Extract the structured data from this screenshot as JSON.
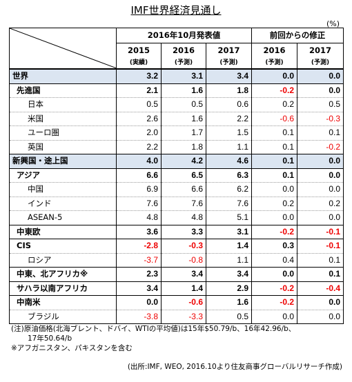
{
  "title": "IMF世界経済見通し",
  "unit": "(%)",
  "header": {
    "group1": "2016年10月発表値",
    "group2": "前回からの修正",
    "years": [
      "2015",
      "2016",
      "2017",
      "2016",
      "2017"
    ],
    "subs": [
      "(実績)",
      "(予測)",
      "(予測)",
      "(予測)",
      "(予測)"
    ]
  },
  "rows": [
    {
      "label": "世界",
      "level": 0,
      "values": [
        "3.2",
        "3.1",
        "3.4",
        "0.0",
        "0.0"
      ],
      "red": [
        false,
        false,
        false,
        false,
        false
      ]
    },
    {
      "label": "先進国",
      "level": 1,
      "values": [
        "2.1",
        "1.6",
        "1.8",
        "-0.2",
        "0.0"
      ],
      "red": [
        false,
        false,
        false,
        true,
        false
      ]
    },
    {
      "label": "日本",
      "level": 2,
      "values": [
        "0.5",
        "0.5",
        "0.6",
        "0.2",
        "0.5"
      ],
      "red": [
        false,
        false,
        false,
        false,
        false
      ]
    },
    {
      "label": "米国",
      "level": 2,
      "values": [
        "2.6",
        "1.6",
        "2.2",
        "-0.6",
        "-0.3"
      ],
      "red": [
        false,
        false,
        false,
        true,
        true
      ]
    },
    {
      "label": "ユーロ圏",
      "level": 2,
      "values": [
        "2.0",
        "1.7",
        "1.5",
        "0.1",
        "0.1"
      ],
      "red": [
        false,
        false,
        false,
        false,
        false
      ]
    },
    {
      "label": "英国",
      "level": 2,
      "values": [
        "2.2",
        "1.8",
        "1.1",
        "0.1",
        "-0.2"
      ],
      "red": [
        false,
        false,
        false,
        false,
        true
      ]
    },
    {
      "label": "新興国・途上国",
      "level": 0,
      "values": [
        "4.0",
        "4.2",
        "4.6",
        "0.1",
        "0.0"
      ],
      "red": [
        false,
        false,
        false,
        false,
        false
      ]
    },
    {
      "label": "アジア",
      "level": 1,
      "values": [
        "6.6",
        "6.5",
        "6.3",
        "0.1",
        "0.0"
      ],
      "red": [
        false,
        false,
        false,
        false,
        false
      ]
    },
    {
      "label": "中国",
      "level": 2,
      "values": [
        "6.9",
        "6.6",
        "6.2",
        "0.0",
        "0.0"
      ],
      "red": [
        false,
        false,
        false,
        false,
        false
      ]
    },
    {
      "label": "インド",
      "level": 2,
      "values": [
        "7.6",
        "7.6",
        "7.6",
        "0.2",
        "0.2"
      ],
      "red": [
        false,
        false,
        false,
        false,
        false
      ]
    },
    {
      "label": "ASEAN-5",
      "level": 2,
      "values": [
        "4.8",
        "4.8",
        "5.1",
        "0.0",
        "0.0"
      ],
      "red": [
        false,
        false,
        false,
        false,
        false
      ]
    },
    {
      "label": "中東欧",
      "level": 1,
      "values": [
        "3.6",
        "3.3",
        "3.1",
        "-0.2",
        "-0.1"
      ],
      "red": [
        false,
        false,
        false,
        true,
        true
      ]
    },
    {
      "label": "CIS",
      "level": 1,
      "values": [
        "-2.8",
        "-0.3",
        "1.4",
        "0.3",
        "-0.1"
      ],
      "red": [
        true,
        true,
        false,
        false,
        true
      ]
    },
    {
      "label": "ロシア",
      "level": 2,
      "values": [
        "-3.7",
        "-0.8",
        "1.1",
        "0.4",
        "0.1"
      ],
      "red": [
        true,
        true,
        false,
        false,
        false
      ]
    },
    {
      "label": "中東、北アフリカ※",
      "level": 1,
      "values": [
        "2.3",
        "3.4",
        "3.4",
        "0.0",
        "0.1"
      ],
      "red": [
        false,
        false,
        false,
        false,
        false
      ]
    },
    {
      "label": "サハラ以南アフリカ",
      "level": 1,
      "values": [
        "3.4",
        "1.4",
        "2.9",
        "-0.2",
        "-0.4"
      ],
      "red": [
        false,
        false,
        false,
        true,
        true
      ]
    },
    {
      "label": "中南米",
      "level": 1,
      "values": [
        "0.0",
        "-0.6",
        "1.6",
        "-0.2",
        "0.0"
      ],
      "red": [
        false,
        true,
        false,
        true,
        false
      ]
    },
    {
      "label": "ブラジル",
      "level": 2,
      "values": [
        "-3.8",
        "-3.3",
        "0.5",
        "0.0",
        "0.0"
      ],
      "red": [
        true,
        true,
        false,
        false,
        false
      ]
    }
  ],
  "notes": [
    "(注)原油価格(北海ブレント、ドバイ、WTIの平均値)は15年$50.79/b、16年42.96/b、",
    "17年50.64/b",
    "※アフガニスタン、パキスタンを含む"
  ],
  "source": "(出所:IMF, WEO, 2016.10より住友商事グローバルリサーチ作成)",
  "colors": {
    "shade": "#dbe5f1",
    "negative": "#e00000"
  }
}
